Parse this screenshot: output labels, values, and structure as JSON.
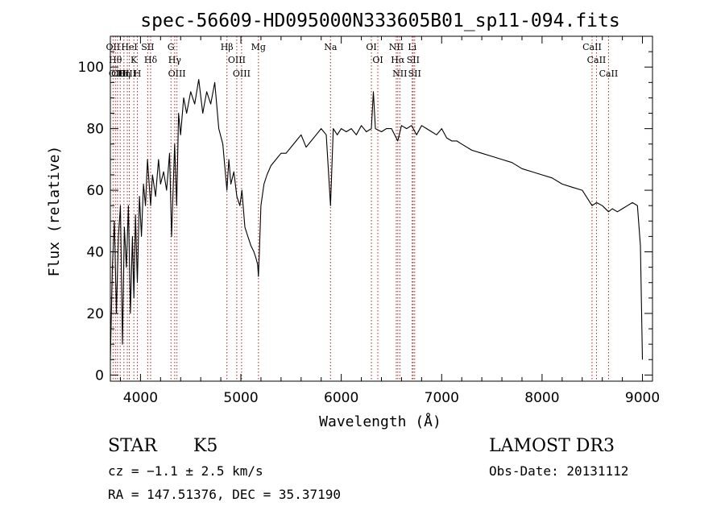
{
  "chart_data": {
    "type": "line",
    "title": "spec-56609-HD095000N333605B01_sp11-094.fits",
    "xlabel": "Wavelength (Å)",
    "ylabel": "Flux (relative)",
    "xlim": [
      3700,
      9100
    ],
    "ylim": [
      -2,
      110
    ],
    "xticks": [
      4000,
      5000,
      6000,
      7000,
      8000,
      9000
    ],
    "yticks": [
      0,
      20,
      40,
      60,
      80,
      100
    ],
    "grid": false,
    "series": [
      {
        "x": [
          3700,
          3720,
          3740,
          3760,
          3780,
          3800,
          3820,
          3840,
          3860,
          3880,
          3900,
          3920,
          3934,
          3950,
          3969,
          3990,
          4010,
          4030,
          4050,
          4070,
          4101,
          4120,
          4150,
          4180,
          4200,
          4230,
          4260,
          4290,
          4310,
          4340,
          4360,
          4380,
          4400,
          4430,
          4460,
          4500,
          4540,
          4580,
          4620,
          4660,
          4700,
          4740,
          4780,
          4820,
          4861,
          4880,
          4900,
          4930,
          4960,
          4990,
          5010,
          5040,
          5070,
          5100,
          5130,
          5150,
          5167,
          5175,
          5184,
          5200,
          5230,
          5260,
          5300,
          5350,
          5400,
          5450,
          5500,
          5550,
          5600,
          5650,
          5700,
          5750,
          5800,
          5850,
          5893,
          5920,
          5960,
          6000,
          6050,
          6100,
          6150,
          6200,
          6250,
          6300,
          6320,
          6340,
          6400,
          6450,
          6500,
          6563,
          6600,
          6650,
          6700,
          6750,
          6800,
          6850,
          6900,
          6950,
          7000,
          7050,
          7100,
          7150,
          7200,
          7300,
          7400,
          7500,
          7600,
          7700,
          7800,
          7900,
          8000,
          8100,
          8200,
          8300,
          8400,
          8498,
          8542,
          8600,
          8662,
          8700,
          8750,
          8800,
          8850,
          8900,
          8950,
          8980,
          9000
        ],
        "y": [
          5,
          35,
          50,
          20,
          45,
          55,
          10,
          48,
          35,
          55,
          20,
          45,
          25,
          52,
          30,
          58,
          45,
          62,
          55,
          70,
          55,
          65,
          58,
          70,
          62,
          66,
          60,
          72,
          45,
          75,
          55,
          85,
          78,
          90,
          85,
          92,
          88,
          96,
          85,
          92,
          88,
          95,
          80,
          75,
          60,
          70,
          62,
          66,
          58,
          55,
          60,
          48,
          45,
          42,
          40,
          38,
          36,
          32,
          40,
          55,
          62,
          65,
          68,
          70,
          72,
          72,
          74,
          76,
          78,
          74,
          76,
          78,
          80,
          78,
          55,
          80,
          78,
          80,
          79,
          80,
          78,
          81,
          79,
          80,
          92,
          80,
          79,
          80,
          80,
          76,
          81,
          80,
          81,
          78,
          81,
          80,
          79,
          78,
          80,
          77,
          76,
          76,
          75,
          73,
          72,
          71,
          70,
          69,
          67,
          66,
          65,
          64,
          62,
          61,
          60,
          55,
          56,
          55,
          53,
          54,
          53,
          54,
          55,
          56,
          55,
          42,
          5
        ]
      }
    ],
    "line_markers": [
      {
        "x": 3727,
        "label": "OII"
      },
      {
        "x": 3750,
        "label": "Hθ"
      },
      {
        "x": 3771,
        "label": "OIII"
      },
      {
        "x": 3798,
        "label": "OIII"
      },
      {
        "x": 3835,
        "label": "Hη"
      },
      {
        "x": 3869,
        "label": "OIII"
      },
      {
        "x": 3889,
        "label": "HeI"
      },
      {
        "x": 3934,
        "label": "K"
      },
      {
        "x": 3969,
        "label": "H"
      },
      {
        "x": 4072,
        "label": "SII"
      },
      {
        "x": 4101,
        "label": "Hδ"
      },
      {
        "x": 4304,
        "label": "G"
      },
      {
        "x": 4341,
        "label": "Hγ"
      },
      {
        "x": 4363,
        "label": "OIII"
      },
      {
        "x": 4861,
        "label": "Hβ"
      },
      {
        "x": 4959,
        "label": "OIII"
      },
      {
        "x": 5007,
        "label": "OIII"
      },
      {
        "x": 5175,
        "label": "Mg"
      },
      {
        "x": 5893,
        "label": "Na"
      },
      {
        "x": 6300,
        "label": "OI"
      },
      {
        "x": 6364,
        "label": "OI"
      },
      {
        "x": 6548,
        "label": "NII"
      },
      {
        "x": 6563,
        "label": "Hα"
      },
      {
        "x": 6583,
        "label": "NII"
      },
      {
        "x": 6707,
        "label": "Li"
      },
      {
        "x": 6716,
        "label": "SII"
      },
      {
        "x": 6731,
        "label": "SII"
      },
      {
        "x": 8498,
        "label": "CaII"
      },
      {
        "x": 8542,
        "label": "CaII"
      },
      {
        "x": 8662,
        "label": "CaII"
      }
    ]
  },
  "info": {
    "object_class": "STAR",
    "subclass": "K5",
    "survey": "LAMOST DR3",
    "redshift": "cz = −1.1 ± 2.5 km/s",
    "obs_date": "Obs-Date: 20131112",
    "coords": "RA = 147.51376, DEC =  35.37190"
  }
}
